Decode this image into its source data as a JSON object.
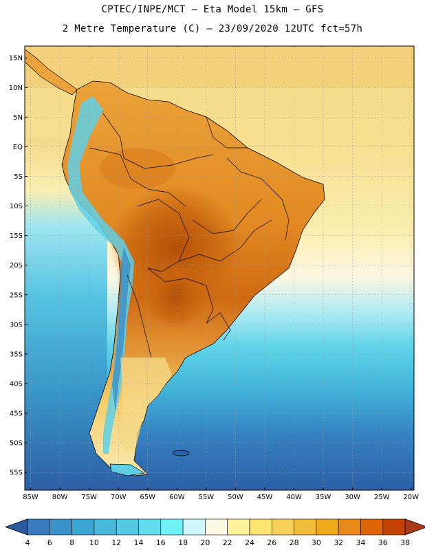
{
  "header": {
    "line1": "CPTEC/INPE/MCT –  Eta Model 15km – GFS",
    "line2": "2 Metre Temperature (C) – 23/09/2020 12UTC fct=57h"
  },
  "axes": {
    "lat_labels": [
      "15N",
      "10N",
      "5N",
      "EQ",
      "5S",
      "10S",
      "15S",
      "20S",
      "25S",
      "30S",
      "35S",
      "40S",
      "45S",
      "50S",
      "55S"
    ],
    "lon_labels": [
      "85W",
      "80W",
      "75W",
      "70W",
      "65W",
      "60W",
      "55W",
      "50W",
      "45W",
      "40W",
      "35W",
      "30W",
      "25W",
      "20W"
    ],
    "lat_range": [
      17,
      -58
    ],
    "lon_range": [
      -86,
      -19.5
    ],
    "lat_ticks": [
      15,
      10,
      5,
      0,
      -5,
      -10,
      -15,
      -20,
      -25,
      -30,
      -35,
      -40,
      -45,
      -50,
      -55
    ],
    "lon_ticks": [
      -85,
      -80,
      -75,
      -70,
      -65,
      -60,
      -55,
      -50,
      -45,
      -40,
      -35,
      -30,
      -25,
      -20
    ]
  },
  "colorbar": {
    "levels": [
      "4",
      "6",
      "8",
      "10",
      "12",
      "14",
      "16",
      "18",
      "20",
      "22",
      "24",
      "26",
      "28",
      "30",
      "32",
      "34",
      "36",
      "38"
    ],
    "colors": [
      "#2a5a9e",
      "#3a7abf",
      "#3b92c8",
      "#3aa5d2",
      "#47b8dc",
      "#55c9e4",
      "#62dcec",
      "#70f2f7",
      "#cff7fb",
      "#fdf8e4",
      "#fdf19b",
      "#fbe470",
      "#f6d05a",
      "#f1bb3c",
      "#eda918",
      "#e88818",
      "#de6405",
      "#c44503",
      "#a83a18"
    ]
  },
  "map": {
    "ocean_color": "#d6f3fb",
    "land_color": "#f0b35a",
    "hot_color": "#c8640e",
    "cold_color": "#3b75b8",
    "deep_ocean_color": "#2d5fa6"
  }
}
